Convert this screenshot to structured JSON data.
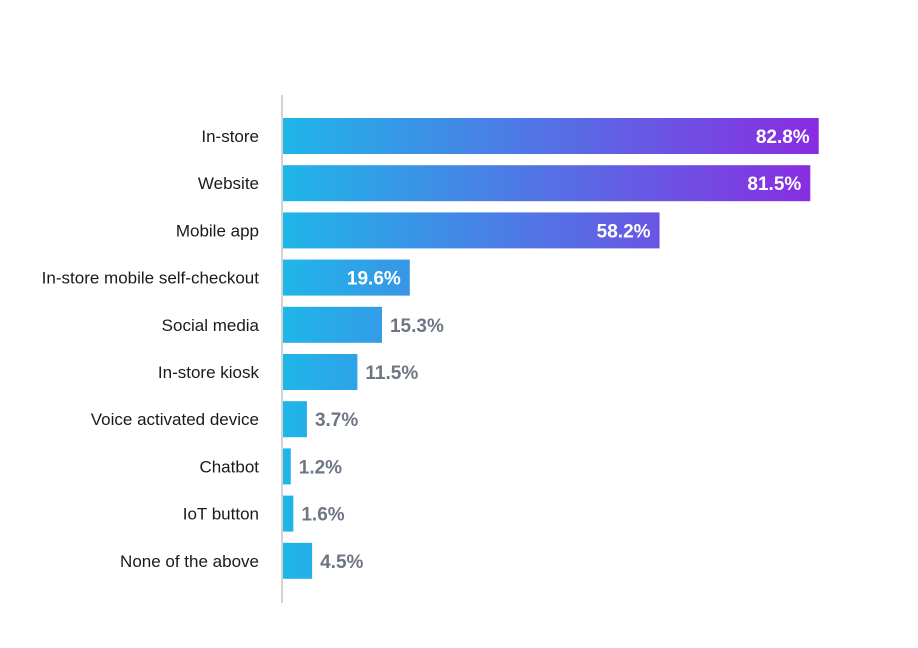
{
  "chart_data": {
    "type": "bar",
    "orientation": "horizontal",
    "categories": [
      "In-store",
      "Website",
      "Mobile app",
      "In-store mobile self-checkout",
      "Social media",
      "In-store kiosk",
      "Voice activated device",
      "Chatbot",
      "IoT button",
      "None of the above"
    ],
    "values": [
      82.8,
      81.5,
      58.2,
      19.6,
      15.3,
      11.5,
      3.7,
      1.2,
      1.6,
      4.5
    ],
    "value_labels": [
      "82.8%",
      "81.5%",
      "58.2%",
      "19.6%",
      "15.3%",
      "11.5%",
      "3.7%",
      "1.2%",
      "1.6%",
      "4.5%"
    ],
    "title": "",
    "xlabel": "",
    "ylabel": "",
    "xlim": [
      0,
      83
    ],
    "grid": false,
    "legend": "none"
  },
  "colors": {
    "bar_gradient_start": "#1fb6e8",
    "bar_gradient_end": "#8a2be2",
    "label_inside": "#ffffff",
    "label_outside": "#6e7585",
    "category_text": "#1a1a1a",
    "axis_line": "#d3d3d3"
  }
}
